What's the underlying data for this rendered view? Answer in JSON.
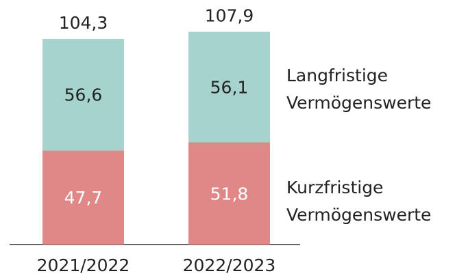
{
  "chart_data": {
    "type": "stacked_bar",
    "categories": [
      "2021/2022",
      "2022/2023"
    ],
    "series": [
      {
        "name": "Kurzfristige Vermögenswerte",
        "color": "#e08787",
        "label_color": "#ffffff",
        "values": [
          47.7,
          51.8
        ],
        "value_labels": [
          "47,7",
          "51,8"
        ]
      },
      {
        "name": "Langfristige Vermögenswerte",
        "color": "#a6d3cd",
        "label_color": "#222222",
        "values": [
          56.6,
          56.1
        ],
        "value_labels": [
          "56,6",
          "56,1"
        ]
      }
    ],
    "totals": {
      "values": [
        104.3,
        107.9
      ],
      "value_labels": [
        "104,3",
        "107,9"
      ]
    }
  }
}
